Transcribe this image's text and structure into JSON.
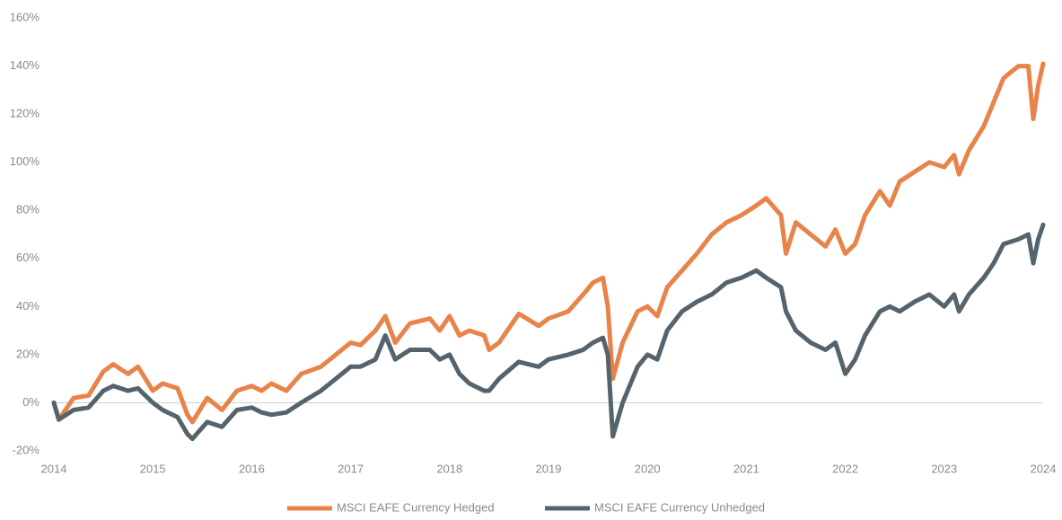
{
  "chart_data": {
    "type": "line",
    "x": [
      2014.0,
      2014.05,
      2014.2,
      2014.35,
      2014.5,
      2014.6,
      2014.75,
      2014.85,
      2015.0,
      2015.1,
      2015.25,
      2015.35,
      2015.4,
      2015.55,
      2015.7,
      2015.85,
      2016.0,
      2016.1,
      2016.2,
      2016.35,
      2016.5,
      2016.7,
      2016.85,
      2017.0,
      2017.1,
      2017.25,
      2017.35,
      2017.45,
      2017.6,
      2017.8,
      2017.9,
      2018.0,
      2018.1,
      2018.2,
      2018.35,
      2018.4,
      2018.5,
      2018.7,
      2018.9,
      2019.0,
      2019.2,
      2019.35,
      2019.45,
      2019.55,
      2019.6,
      2019.65,
      2019.75,
      2019.9,
      2020.0,
      2020.1,
      2020.2,
      2020.35,
      2020.5,
      2020.65,
      2020.8,
      2020.95,
      2021.1,
      2021.2,
      2021.35,
      2021.4,
      2021.5,
      2021.65,
      2021.8,
      2021.9,
      2022.0,
      2022.1,
      2022.2,
      2022.35,
      2022.45,
      2022.55,
      2022.7,
      2022.85,
      2023.0,
      2023.1,
      2023.15,
      2023.25,
      2023.4,
      2023.5,
      2023.6,
      2023.75,
      2023.85,
      2023.9,
      2023.95,
      2024.0
    ],
    "series": [
      {
        "name": "MSCI EAFE Currency Hedged",
        "color": "#e8834a",
        "values": [
          0,
          -7,
          2,
          3,
          13,
          16,
          12,
          15,
          5,
          8,
          6,
          -5,
          -8,
          2,
          -3,
          5,
          7,
          5,
          8,
          5,
          12,
          15,
          20,
          25,
          24,
          30,
          36,
          25,
          33,
          35,
          30,
          36,
          28,
          30,
          28,
          22,
          25,
          37,
          32,
          35,
          38,
          45,
          50,
          52,
          40,
          10,
          25,
          38,
          40,
          36,
          48,
          55,
          62,
          70,
          75,
          78,
          82,
          85,
          78,
          62,
          75,
          70,
          65,
          72,
          62,
          66,
          78,
          88,
          82,
          92,
          96,
          100,
          98,
          103,
          95,
          105,
          115,
          125,
          135,
          140,
          140,
          118,
          132,
          141
        ]
      },
      {
        "name": "MSCI EAFE Currency Unhedged",
        "color": "#55646c",
        "values": [
          0,
          -7,
          -3,
          -2,
          5,
          7,
          5,
          6,
          0,
          -3,
          -6,
          -13,
          -15,
          -8,
          -10,
          -3,
          -2,
          -4,
          -5,
          -4,
          0,
          5,
          10,
          15,
          15,
          18,
          28,
          18,
          22,
          22,
          18,
          20,
          12,
          8,
          5,
          5,
          10,
          17,
          15,
          18,
          20,
          22,
          25,
          27,
          20,
          -14,
          0,
          15,
          20,
          18,
          30,
          38,
          42,
          45,
          50,
          52,
          55,
          52,
          48,
          38,
          30,
          25,
          22,
          25,
          12,
          18,
          28,
          38,
          40,
          38,
          42,
          45,
          40,
          45,
          38,
          45,
          52,
          58,
          66,
          68,
          70,
          58,
          68,
          74
        ]
      }
    ],
    "xlim": [
      2014,
      2024
    ],
    "xticks": [
      2014,
      2015,
      2016,
      2017,
      2018,
      2019,
      2020,
      2021,
      2022,
      2023,
      2024
    ],
    "ylim": [
      -20,
      160
    ],
    "yticks": [
      {
        "value": -20,
        "label": "-20%"
      },
      {
        "value": 0,
        "label": "0%"
      },
      {
        "value": 20,
        "label": "20%"
      },
      {
        "value": 40,
        "label": "40%"
      },
      {
        "value": 60,
        "label": "60%"
      },
      {
        "value": 80,
        "label": "80%"
      },
      {
        "value": 100,
        "label": "100%"
      },
      {
        "value": 120,
        "label": "120%"
      },
      {
        "value": 140,
        "label": "140%"
      },
      {
        "value": 160,
        "label": "160%"
      }
    ],
    "grid": false
  }
}
